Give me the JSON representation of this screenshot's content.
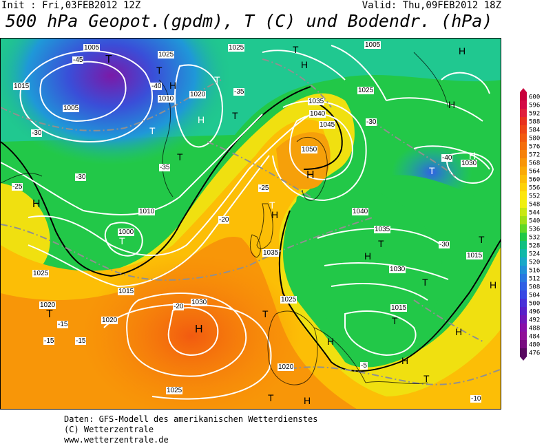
{
  "header": {
    "init": "Init : Fri,03FEB2012 12Z",
    "valid": "Valid: Thu,09FEB2012 18Z",
    "title": "500 hPa Geopot.(gpdm), T (C) und Bodendr. (hPa)"
  },
  "colorbar": {
    "levels": [
      "600",
      "596",
      "592",
      "588",
      "584",
      "580",
      "576",
      "572",
      "568",
      "564",
      "560",
      "556",
      "552",
      "548",
      "544",
      "540",
      "536",
      "532",
      "528",
      "524",
      "520",
      "516",
      "512",
      "508",
      "504",
      "500",
      "496",
      "492",
      "488",
      "484",
      "480",
      "476"
    ],
    "colors": [
      "#c8003c",
      "#d40a46",
      "#e01e3c",
      "#e8321e",
      "#ee4616",
      "#f25a10",
      "#f46e0c",
      "#f6820a",
      "#f89608",
      "#faaa06",
      "#fcbe06",
      "#fdd208",
      "#fde60c",
      "#f0f010",
      "#c8e814",
      "#a0e018",
      "#60d828",
      "#20c848",
      "#10c080",
      "#10b8a8",
      "#18a8c8",
      "#2090d8",
      "#2878e0",
      "#3060e4",
      "#3848e4",
      "#4830d8",
      "#5820c8",
      "#7018b8",
      "#8810a8",
      "#901098",
      "#780c80",
      "#580860"
    ]
  },
  "map": {
    "pressure_labels": [
      "1005",
      "1010",
      "1015",
      "1020",
      "1025",
      "1030",
      "1035",
      "1040",
      "1045",
      "1050",
      "1000"
    ],
    "temp_labels": [
      "-45",
      "-40",
      "-35",
      "-30",
      "-25",
      "-20",
      "-15",
      "-10",
      "-5"
    ],
    "highs": [
      "H",
      "H",
      "H",
      "H",
      "H",
      "H",
      "H",
      "H",
      "H",
      "H",
      "H",
      "H",
      "H",
      "H",
      "H",
      "H"
    ],
    "lows": [
      "T",
      "T",
      "T",
      "T",
      "T",
      "T",
      "T",
      "T",
      "T",
      "T",
      "T",
      "T",
      "T",
      "T",
      "T",
      "T",
      "T",
      "T"
    ]
  },
  "footer": {
    "line1": "Daten: GFS-Modell des amerikanischen Wetterdienstes",
    "line2": "(C) Wetterzentrale",
    "line3": "www.wetterzentrale.de"
  }
}
